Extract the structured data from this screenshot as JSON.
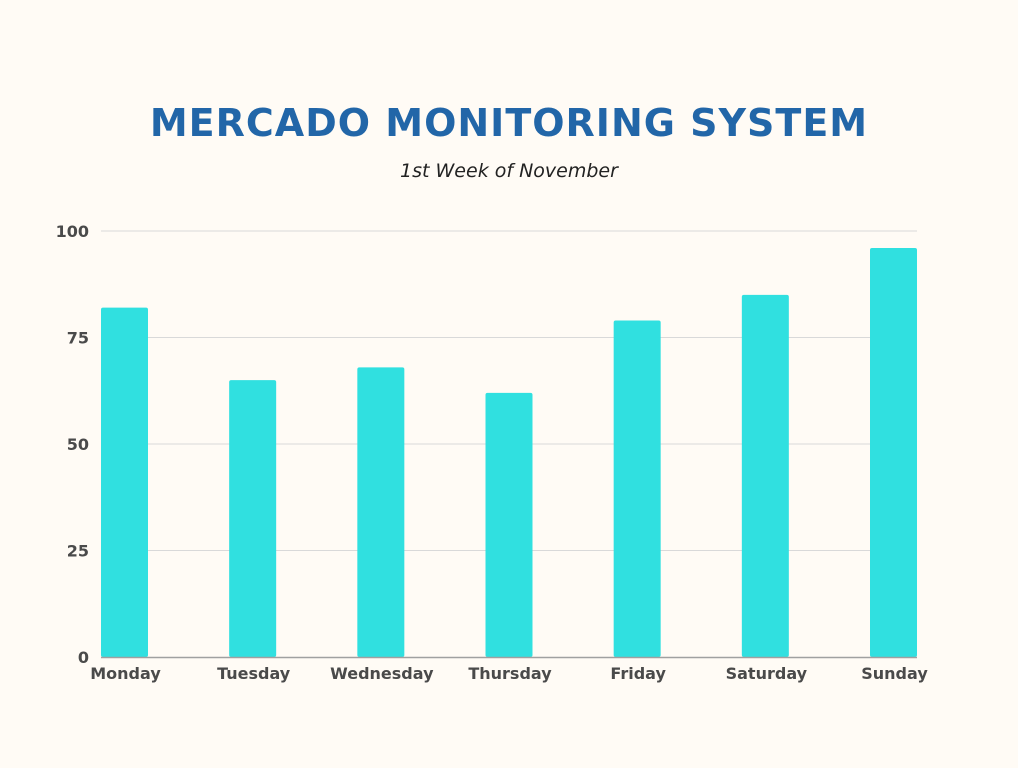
{
  "chart_data": {
    "type": "bar",
    "title": "MERCADO MONITORING SYSTEM",
    "subtitle": "1st Week of November",
    "categories": [
      "Monday",
      "Tuesday",
      "Wednesday",
      "Thursday",
      "Friday",
      "Saturday",
      "Sunday"
    ],
    "values": [
      82,
      65,
      68,
      62,
      79,
      85,
      96
    ],
    "ylim": [
      0,
      100
    ],
    "yticks": [
      0,
      25,
      50,
      75,
      100
    ],
    "xlabel": "",
    "ylabel": "",
    "grid": true,
    "legend": "none",
    "colors": {
      "bar": "#30e0e0",
      "title": "#2266a8",
      "grid": "#d9d9d9",
      "axis": "#a0a0a0",
      "background": "#fffbf5"
    }
  }
}
